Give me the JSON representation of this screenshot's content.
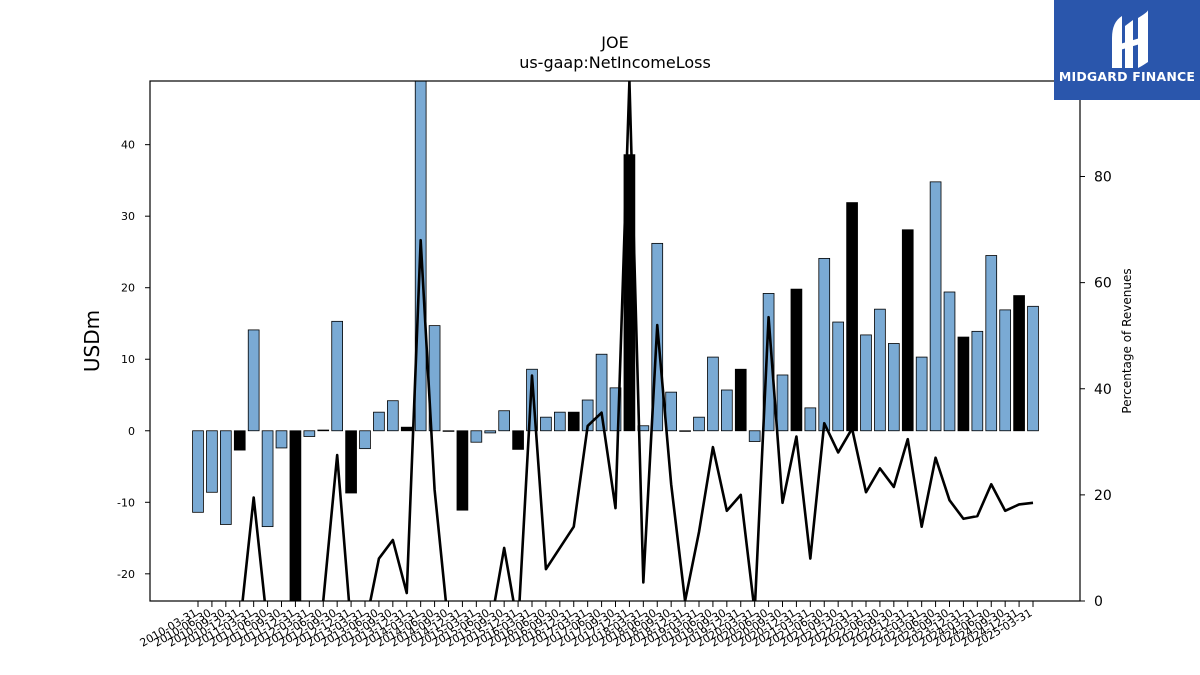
{
  "logo": {
    "text": "MIDGARD FINANCE",
    "background": "#2a56ac"
  },
  "chart_data": {
    "type": "bar",
    "title": "JOE",
    "subtitle": "us-gaap:NetIncomeLoss",
    "ylabel": "USDm",
    "y2label": "Percentage of Revenues",
    "ylim": [
      -23.8,
      48.9
    ],
    "y2lim": [
      0,
      98
    ],
    "yticks": [
      -20,
      -10,
      0,
      10,
      20,
      30,
      40
    ],
    "y2ticks": [
      0,
      20,
      40,
      60,
      80
    ],
    "bar_color": "#7aaad4",
    "highlight_color": "#000000",
    "line_color": "#000000",
    "categories": [
      "2010-03-31",
      "2010-06-30",
      "2010-09-30",
      "2010-12-31",
      "2011-03-31",
      "2011-06-30",
      "2011-09-30",
      "2011-12-31",
      "2012-03-31",
      "2012-06-30",
      "2012-09-30",
      "2012-12-31",
      "2013-03-31",
      "2013-06-30",
      "2013-09-30",
      "2013-12-31",
      "2014-03-31",
      "2014-06-30",
      "2014-09-30",
      "2014-12-31",
      "2015-03-31",
      "2015-06-30",
      "2015-09-30",
      "2015-12-31",
      "2016-03-31",
      "2016-06-30",
      "2016-09-30",
      "2016-12-31",
      "2017-03-31",
      "2017-06-30",
      "2017-09-30",
      "2017-12-31",
      "2018-03-31",
      "2018-06-30",
      "2018-09-30",
      "2018-12-31",
      "2019-03-31",
      "2019-06-30",
      "2019-09-30",
      "2019-12-31",
      "2020-03-31",
      "2020-06-30",
      "2020-09-30",
      "2020-12-31",
      "2021-03-31",
      "2021-06-30",
      "2021-09-30",
      "2021-12-31",
      "2022-03-31",
      "2022-06-30",
      "2022-09-30",
      "2022-12-31",
      "2023-03-31",
      "2023-06-30",
      "2023-09-30",
      "2023-12-31",
      "2024-03-31",
      "2024-06-30",
      "2024-09-30",
      "2024-12-31",
      "2025-03-31"
    ],
    "tick_labels": [
      "2010-03-31",
      "2010-06-30",
      "2010-09-30",
      "2010-12-31",
      "2011-03-31",
      "2011-06-30",
      "2011-09-30",
      "2011-12-31",
      "2012-03-31",
      "2012-06-30",
      "2012-09-30",
      "2012-12-31",
      "2013-03-31",
      "2013-06-30",
      "2013-09-30",
      "2013-12-31",
      "2014-03-31",
      "2014-06-30",
      "2014-09-30",
      "2014-12-31",
      "2015-03-31",
      "2015-06-30",
      "2015-09-30",
      "2015-12-31",
      "2016-03-31",
      "2016-06-30",
      "2016-09-30",
      "2016-12-31",
      "2017-03-31",
      "2017-06-30",
      "2017-09-30",
      "2017-12-31",
      "2018-03-31",
      "2018-06-30",
      "2018-09-30",
      "2018-12-31",
      "2019-03-31",
      "2019-06-30",
      "2019-09-30",
      "2019-12-31",
      "2020-03-31",
      "2020-06-30",
      "2020-09-30",
      "2020-12-31",
      "2021-03-31",
      "2021-06-30",
      "2021-09-30",
      "2021-12-31",
      "2022-03-31",
      "2022-06-30",
      "2022-09-30",
      "2022-12-31",
      "2023-03-31",
      "2023-06-30",
      "2023-09-30",
      "2023-12-31",
      "2024-03-31",
      "2024-06-30",
      "2024-09-30",
      "2024-12-31",
      "2025-03-31"
    ],
    "values": [
      -11.4,
      -8.6,
      -13.1,
      -2.7,
      14.1,
      -13.4,
      -2.4,
      -25,
      -0.8,
      0.1,
      15.3,
      -8.7,
      -2.5,
      2.6,
      4.2,
      0.5,
      49,
      14.7,
      0,
      -11.1,
      -1.6,
      -0.3,
      2.8,
      -2.6,
      8.6,
      1.9,
      2.6,
      2.6,
      4.3,
      10.7,
      6,
      38.6,
      0.7,
      26.2,
      5.4,
      0,
      1.9,
      10.3,
      5.7,
      8.6,
      -1.5,
      19.2,
      7.8,
      19.8,
      3.2,
      24.1,
      15.2,
      31.9,
      13.4,
      17,
      12.2,
      28.1,
      10.3,
      34.8,
      19.4,
      13.1,
      13.9,
      24.5,
      16.9,
      18.9,
      17.4
    ],
    "highlight_indices": [
      3,
      7,
      11,
      15,
      19,
      23,
      27,
      31,
      35,
      39,
      43,
      47,
      51,
      55,
      59
    ],
    "series": [
      {
        "values": [
          -5,
          -5,
          -5,
          -5,
          19.5,
          -5,
          -5,
          -5,
          -5,
          0,
          27.5,
          -5,
          -5,
          8,
          11.5,
          1.5,
          68,
          21,
          -5,
          -5,
          -5,
          -5,
          10,
          -5,
          42.5,
          6,
          10,
          14,
          33,
          35.5,
          17.5,
          98,
          3.5,
          52,
          22,
          0,
          13,
          29,
          17,
          20,
          -2,
          53.5,
          18.5,
          31,
          8,
          33.5,
          28,
          32.5,
          20.5,
          25,
          21.5,
          30.5,
          14,
          27,
          19,
          15.5,
          16,
          22,
          17,
          18.2,
          18.5
        ]
      }
    ]
  }
}
